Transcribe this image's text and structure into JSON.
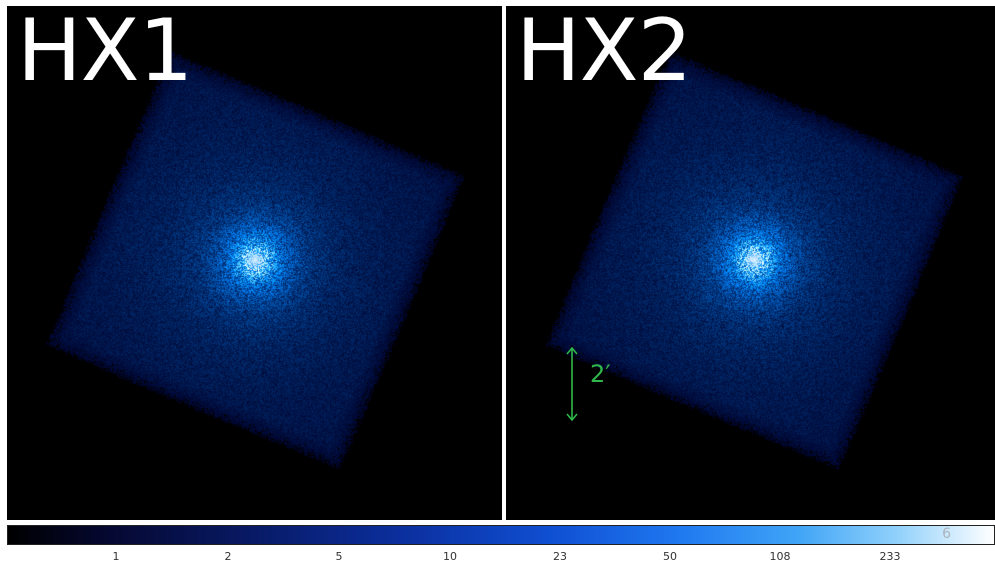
{
  "panels": [
    {
      "label": "HX1",
      "scale_bar_label": ""
    },
    {
      "label": "HX2",
      "scale_bar_label": "2′"
    }
  ],
  "colorbar": {
    "ticks": [
      "1",
      "2",
      "5",
      "10",
      "23",
      "50",
      "108",
      "233"
    ],
    "corner_label": "6"
  },
  "colors": {
    "background": "#000000",
    "source_glow": "#1f78f0",
    "scale_bar": "#2fb84a",
    "label_text": "#ffffff"
  }
}
